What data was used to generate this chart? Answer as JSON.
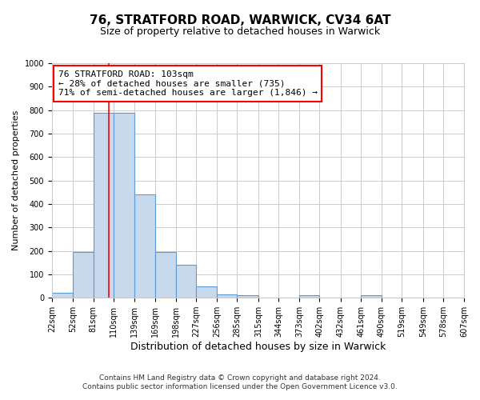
{
  "title": "76, STRATFORD ROAD, WARWICK, CV34 6AT",
  "subtitle": "Size of property relative to detached houses in Warwick",
  "xlabel": "Distribution of detached houses by size in Warwick",
  "ylabel": "Number of detached properties",
  "bin_edges": [
    22,
    52,
    81,
    110,
    139,
    169,
    198,
    227,
    256,
    285,
    315,
    344,
    373,
    402,
    432,
    461,
    490,
    519,
    549,
    578,
    607
  ],
  "bin_labels": [
    "22sqm",
    "52sqm",
    "81sqm",
    "110sqm",
    "139sqm",
    "169sqm",
    "198sqm",
    "227sqm",
    "256sqm",
    "285sqm",
    "315sqm",
    "344sqm",
    "373sqm",
    "402sqm",
    "432sqm",
    "461sqm",
    "490sqm",
    "519sqm",
    "549sqm",
    "578sqm",
    "607sqm"
  ],
  "counts": [
    20,
    195,
    790,
    790,
    440,
    195,
    140,
    50,
    15,
    10,
    0,
    0,
    10,
    0,
    0,
    10,
    0,
    0,
    0,
    0
  ],
  "bar_color": "#c8d9ed",
  "bar_edge_color": "#5b9bd5",
  "vline_x": 103,
  "vline_color": "red",
  "ylim": [
    0,
    1000
  ],
  "yticks": [
    0,
    100,
    200,
    300,
    400,
    500,
    600,
    700,
    800,
    900,
    1000
  ],
  "annotation_text": "76 STRATFORD ROAD: 103sqm\n← 28% of detached houses are smaller (735)\n71% of semi-detached houses are larger (1,846) →",
  "annotation_box_color": "white",
  "annotation_box_edge_color": "red",
  "footer_line1": "Contains HM Land Registry data © Crown copyright and database right 2024.",
  "footer_line2": "Contains public sector information licensed under the Open Government Licence v3.0.",
  "background_color": "white",
  "grid_color": "#cccccc",
  "title_fontsize": 11,
  "subtitle_fontsize": 9,
  "ylabel_fontsize": 8,
  "xlabel_fontsize": 9,
  "tick_fontsize": 7,
  "annot_fontsize": 8,
  "footer_fontsize": 6.5
}
